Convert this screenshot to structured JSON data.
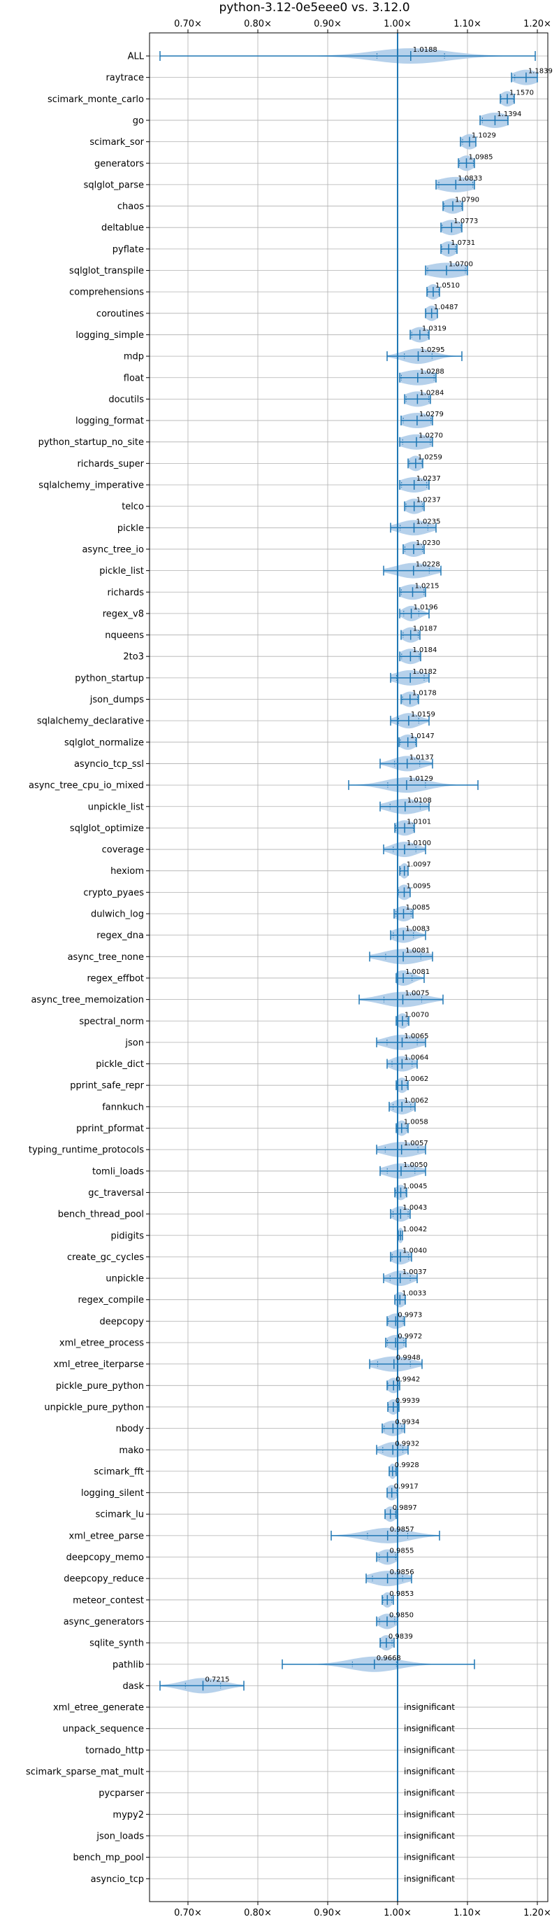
{
  "chart_data": {
    "type": "violin",
    "title": "python-3.12-0e5eee0 vs. 3.12.0",
    "xlabel": "",
    "ylabel": "",
    "xlim": [
      0.645,
      1.215
    ],
    "xticks": [
      0.7,
      0.8,
      0.9,
      1.0,
      1.1,
      1.2
    ],
    "xtick_labels": [
      "0.70×",
      "0.80×",
      "0.90×",
      "1.00×",
      "1.10×",
      "1.20×"
    ],
    "grid": true,
    "reference_line": 1.0,
    "insignificant_label": "insignificant",
    "benchmarks": [
      {
        "name": "ALL",
        "value": 1.0188,
        "value_label": "1.0188",
        "min": 0.66,
        "max": 1.197,
        "spread": 0.022
      },
      {
        "name": "raytrace",
        "value": 1.1839,
        "value_label": "1.1839",
        "min": 1.163,
        "max": 1.2,
        "spread": 0.018
      },
      {
        "name": "scimark_monte_carlo",
        "value": 1.157,
        "value_label": "1.1570",
        "min": 1.147,
        "max": 1.167,
        "spread": 0.01
      },
      {
        "name": "go",
        "value": 1.1394,
        "value_label": "1.1394",
        "min": 1.118,
        "max": 1.158,
        "spread": 0.02
      },
      {
        "name": "scimark_sor",
        "value": 1.1029,
        "value_label": "1.1029",
        "min": 1.09,
        "max": 1.112,
        "spread": 0.011
      },
      {
        "name": "generators",
        "value": 1.0985,
        "value_label": "1.0985",
        "min": 1.087,
        "max": 1.11,
        "spread": 0.011
      },
      {
        "name": "sqlglot_parse",
        "value": 1.0833,
        "value_label": "1.0833",
        "min": 1.055,
        "max": 1.11,
        "spread": 0.027
      },
      {
        "name": "chaos",
        "value": 1.079,
        "value_label": "1.0790",
        "min": 1.065,
        "max": 1.093,
        "spread": 0.014
      },
      {
        "name": "deltablue",
        "value": 1.0773,
        "value_label": "1.0773",
        "min": 1.062,
        "max": 1.092,
        "spread": 0.015
      },
      {
        "name": "pyflate",
        "value": 1.0731,
        "value_label": "1.0731",
        "min": 1.062,
        "max": 1.085,
        "spread": 0.011
      },
      {
        "name": "sqlglot_transpile",
        "value": 1.07,
        "value_label": "1.0700",
        "min": 1.04,
        "max": 1.1,
        "spread": 0.03
      },
      {
        "name": "comprehensions",
        "value": 1.051,
        "value_label": "1.0510",
        "min": 1.042,
        "max": 1.06,
        "spread": 0.009
      },
      {
        "name": "coroutines",
        "value": 1.0487,
        "value_label": "1.0487",
        "min": 1.04,
        "max": 1.057,
        "spread": 0.009
      },
      {
        "name": "logging_simple",
        "value": 1.0319,
        "value_label": "1.0319",
        "min": 1.018,
        "max": 1.045,
        "spread": 0.013
      },
      {
        "name": "mdp",
        "value": 1.0295,
        "value_label": "1.0295",
        "min": 0.985,
        "max": 1.092,
        "spread": 0.022
      },
      {
        "name": "float",
        "value": 1.0288,
        "value_label": "1.0288",
        "min": 1.003,
        "max": 1.055,
        "spread": 0.026
      },
      {
        "name": "docutils",
        "value": 1.0284,
        "value_label": "1.0284",
        "min": 1.01,
        "max": 1.047,
        "spread": 0.018
      },
      {
        "name": "logging_format",
        "value": 1.0279,
        "value_label": "1.0279",
        "min": 1.005,
        "max": 1.05,
        "spread": 0.022
      },
      {
        "name": "python_startup_no_site",
        "value": 1.027,
        "value_label": "1.0270",
        "min": 1.003,
        "max": 1.05,
        "spread": 0.022
      },
      {
        "name": "richards_super",
        "value": 1.0259,
        "value_label": "1.0259",
        "min": 1.015,
        "max": 1.036,
        "spread": 0.01
      },
      {
        "name": "sqlalchemy_imperative",
        "value": 1.0237,
        "value_label": "1.0237",
        "min": 1.003,
        "max": 1.045,
        "spread": 0.02
      },
      {
        "name": "telco",
        "value": 1.0237,
        "value_label": "1.0237",
        "min": 1.01,
        "max": 1.038,
        "spread": 0.013
      },
      {
        "name": "pickle",
        "value": 1.0235,
        "value_label": "1.0235",
        "min": 0.99,
        "max": 1.055,
        "spread": 0.022
      },
      {
        "name": "async_tree_io",
        "value": 1.023,
        "value_label": "1.0230",
        "min": 1.008,
        "max": 1.038,
        "spread": 0.014
      },
      {
        "name": "pickle_list",
        "value": 1.0228,
        "value_label": "1.0228",
        "min": 0.98,
        "max": 1.062,
        "spread": 0.025
      },
      {
        "name": "richards",
        "value": 1.0215,
        "value_label": "1.0215",
        "min": 1.003,
        "max": 1.04,
        "spread": 0.018
      },
      {
        "name": "regex_v8",
        "value": 1.0196,
        "value_label": "1.0196",
        "min": 1.003,
        "max": 1.045,
        "spread": 0.012
      },
      {
        "name": "nqueens",
        "value": 1.0187,
        "value_label": "1.0187",
        "min": 1.005,
        "max": 1.032,
        "spread": 0.012
      },
      {
        "name": "2to3",
        "value": 1.0184,
        "value_label": "1.0184",
        "min": 1.003,
        "max": 1.033,
        "spread": 0.014
      },
      {
        "name": "python_startup",
        "value": 1.0182,
        "value_label": "1.0182",
        "min": 0.99,
        "max": 1.045,
        "spread": 0.022
      },
      {
        "name": "json_dumps",
        "value": 1.0178,
        "value_label": "1.0178",
        "min": 1.005,
        "max": 1.03,
        "spread": 0.012
      },
      {
        "name": "sqlalchemy_declarative",
        "value": 1.0159,
        "value_label": "1.0159",
        "min": 0.99,
        "max": 1.045,
        "spread": 0.016
      },
      {
        "name": "sqlglot_normalize",
        "value": 1.0147,
        "value_label": "1.0147",
        "min": 1.002,
        "max": 1.027,
        "spread": 0.012
      },
      {
        "name": "asyncio_tcp_ssl",
        "value": 1.0137,
        "value_label": "1.0137",
        "min": 0.975,
        "max": 1.05,
        "spread": 0.02
      },
      {
        "name": "async_tree_cpu_io_mixed",
        "value": 1.0129,
        "value_label": "1.0129",
        "min": 0.93,
        "max": 1.115,
        "spread": 0.03
      },
      {
        "name": "unpickle_list",
        "value": 1.0108,
        "value_label": "1.0108",
        "min": 0.975,
        "max": 1.045,
        "spread": 0.024
      },
      {
        "name": "sqlglot_optimize",
        "value": 1.0101,
        "value_label": "1.0101",
        "min": 0.996,
        "max": 1.024,
        "spread": 0.014
      },
      {
        "name": "coverage",
        "value": 1.01,
        "value_label": "1.0100",
        "min": 0.98,
        "max": 1.04,
        "spread": 0.018
      },
      {
        "name": "hexiom",
        "value": 1.0097,
        "value_label": "1.0097",
        "min": 1.003,
        "max": 1.015,
        "spread": 0.006
      },
      {
        "name": "crypto_pyaes",
        "value": 1.0095,
        "value_label": "1.0095",
        "min": 1.0,
        "max": 1.018,
        "spread": 0.009
      },
      {
        "name": "dulwich_log",
        "value": 1.0085,
        "value_label": "1.0085",
        "min": 0.995,
        "max": 1.022,
        "spread": 0.012
      },
      {
        "name": "regex_dna",
        "value": 1.0083,
        "value_label": "1.0083",
        "min": 0.99,
        "max": 1.04,
        "spread": 0.016
      },
      {
        "name": "async_tree_none",
        "value": 1.0081,
        "value_label": "1.0081",
        "min": 0.96,
        "max": 1.05,
        "spread": 0.028
      },
      {
        "name": "regex_effbot",
        "value": 1.0081,
        "value_label": "1.0081",
        "min": 0.998,
        "max": 1.038,
        "spread": 0.014
      },
      {
        "name": "async_tree_memoization",
        "value": 1.0075,
        "value_label": "1.0075",
        "min": 0.945,
        "max": 1.065,
        "spread": 0.03
      },
      {
        "name": "spectral_norm",
        "value": 1.007,
        "value_label": "1.0070",
        "min": 0.998,
        "max": 1.016,
        "spread": 0.008
      },
      {
        "name": "json",
        "value": 1.0065,
        "value_label": "1.0065",
        "min": 0.97,
        "max": 1.04,
        "spread": 0.024
      },
      {
        "name": "pickle_dict",
        "value": 1.0064,
        "value_label": "1.0064",
        "min": 0.985,
        "max": 1.028,
        "spread": 0.016
      },
      {
        "name": "pprint_safe_repr",
        "value": 1.0062,
        "value_label": "1.0062",
        "min": 0.998,
        "max": 1.015,
        "spread": 0.008
      },
      {
        "name": "fannkuch",
        "value": 1.0062,
        "value_label": "1.0062",
        "min": 0.988,
        "max": 1.025,
        "spread": 0.014
      },
      {
        "name": "pprint_pformat",
        "value": 1.0058,
        "value_label": "1.0058",
        "min": 0.998,
        "max": 1.015,
        "spread": 0.008
      },
      {
        "name": "typing_runtime_protocols",
        "value": 1.0057,
        "value_label": "1.0057",
        "min": 0.97,
        "max": 1.04,
        "spread": 0.026
      },
      {
        "name": "tomli_loads",
        "value": 1.005,
        "value_label": "1.0050",
        "min": 0.975,
        "max": 1.04,
        "spread": 0.022
      },
      {
        "name": "gc_traversal",
        "value": 1.0045,
        "value_label": "1.0045",
        "min": 0.996,
        "max": 1.013,
        "spread": 0.008
      },
      {
        "name": "bench_thread_pool",
        "value": 1.0043,
        "value_label": "1.0043",
        "min": 0.99,
        "max": 1.018,
        "spread": 0.012
      },
      {
        "name": "pidigits",
        "value": 1.0042,
        "value_label": "1.0042",
        "min": 1.001,
        "max": 1.007,
        "spread": 0.004
      },
      {
        "name": "create_gc_cycles",
        "value": 1.004,
        "value_label": "1.0040",
        "min": 0.99,
        "max": 1.02,
        "spread": 0.013
      },
      {
        "name": "unpickle",
        "value": 1.0037,
        "value_label": "1.0037",
        "min": 0.98,
        "max": 1.028,
        "spread": 0.016
      },
      {
        "name": "regex_compile",
        "value": 1.0033,
        "value_label": "1.0033",
        "min": 0.996,
        "max": 1.011,
        "spread": 0.008
      },
      {
        "name": "deepcopy",
        "value": 0.9973,
        "value_label": "0.9973",
        "min": 0.985,
        "max": 1.01,
        "spread": 0.012
      },
      {
        "name": "xml_etree_process",
        "value": 0.9972,
        "value_label": "0.9972",
        "min": 0.983,
        "max": 1.012,
        "spread": 0.013
      },
      {
        "name": "xml_etree_iterparse",
        "value": 0.9948,
        "value_label": "0.9948",
        "min": 0.96,
        "max": 1.035,
        "spread": 0.026
      },
      {
        "name": "pickle_pure_python",
        "value": 0.9942,
        "value_label": "0.9942",
        "min": 0.985,
        "max": 1.003,
        "spread": 0.009
      },
      {
        "name": "unpickle_pure_python",
        "value": 0.9939,
        "value_label": "0.9939",
        "min": 0.986,
        "max": 1.002,
        "spread": 0.008
      },
      {
        "name": "nbody",
        "value": 0.9934,
        "value_label": "0.9934",
        "min": 0.978,
        "max": 1.01,
        "spread": 0.014
      },
      {
        "name": "mako",
        "value": 0.9932,
        "value_label": "0.9932",
        "min": 0.97,
        "max": 1.015,
        "spread": 0.016
      },
      {
        "name": "scimark_fft",
        "value": 0.9928,
        "value_label": "0.9928",
        "min": 0.988,
        "max": 0.998,
        "spread": 0.005
      },
      {
        "name": "logging_silent",
        "value": 0.9917,
        "value_label": "0.9917",
        "min": 0.985,
        "max": 1.0,
        "spread": 0.008
      },
      {
        "name": "scimark_lu",
        "value": 0.9897,
        "value_label": "0.9897",
        "min": 0.982,
        "max": 0.998,
        "spread": 0.008
      },
      {
        "name": "xml_etree_parse",
        "value": 0.9857,
        "value_label": "0.9857",
        "min": 0.905,
        "max": 1.06,
        "spread": 0.032
      },
      {
        "name": "deepcopy_memo",
        "value": 0.9855,
        "value_label": "0.9855",
        "min": 0.97,
        "max": 1.0,
        "spread": 0.013
      },
      {
        "name": "deepcopy_reduce",
        "value": 0.9856,
        "value_label": "0.9856",
        "min": 0.955,
        "max": 1.02,
        "spread": 0.024
      },
      {
        "name": "meteor_contest",
        "value": 0.9853,
        "value_label": "0.9853",
        "min": 0.978,
        "max": 0.994,
        "spread": 0.007
      },
      {
        "name": "async_generators",
        "value": 0.985,
        "value_label": "0.9850",
        "min": 0.97,
        "max": 1.0,
        "spread": 0.012
      },
      {
        "name": "sqlite_synth",
        "value": 0.9839,
        "value_label": "0.9839",
        "min": 0.975,
        "max": 0.995,
        "spread": 0.009
      },
      {
        "name": "pathlib",
        "value": 0.9668,
        "value_label": "0.9668",
        "min": 0.835,
        "max": 1.11,
        "spread": 0.035
      },
      {
        "name": "dask",
        "value": 0.7215,
        "value_label": "0.7215",
        "min": 0.66,
        "max": 0.78,
        "spread": 0.028
      },
      {
        "name": "xml_etree_generate",
        "value": null,
        "value_label": "",
        "min": null,
        "max": null,
        "spread": 0
      },
      {
        "name": "unpack_sequence",
        "value": null,
        "value_label": "",
        "min": null,
        "max": null,
        "spread": 0
      },
      {
        "name": "tornado_http",
        "value": null,
        "value_label": "",
        "min": null,
        "max": null,
        "spread": 0
      },
      {
        "name": "scimark_sparse_mat_mult",
        "value": null,
        "value_label": "",
        "min": null,
        "max": null,
        "spread": 0
      },
      {
        "name": "pycparser",
        "value": null,
        "value_label": "",
        "min": null,
        "max": null,
        "spread": 0
      },
      {
        "name": "mypy2",
        "value": null,
        "value_label": "",
        "min": null,
        "max": null,
        "spread": 0
      },
      {
        "name": "json_loads",
        "value": null,
        "value_label": "",
        "min": null,
        "max": null,
        "spread": 0
      },
      {
        "name": "bench_mp_pool",
        "value": null,
        "value_label": "",
        "min": null,
        "max": null,
        "spread": 0
      },
      {
        "name": "asyncio_tcp",
        "value": null,
        "value_label": "",
        "min": null,
        "max": null,
        "spread": 0
      }
    ],
    "colors": {
      "violin_fill": "#a9c9e8",
      "stroke": "#1f77b4",
      "grid": "#b0b0b0",
      "text": "#000000"
    }
  }
}
